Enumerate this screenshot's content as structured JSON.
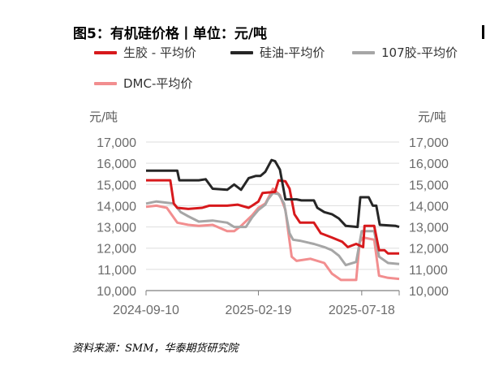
{
  "title": "图5：有机硅价格丨单位：元/吨",
  "source": "资料来源：SMM，华泰期货研究院",
  "chart_data": {
    "type": "line",
    "y_unit_left": "元/吨",
    "y_unit_right": "元/吨",
    "ylim": [
      10000,
      17000
    ],
    "y_ticks": [
      "17,000",
      "16,000",
      "15,000",
      "14,000",
      "13,000",
      "12,000",
      "11,000",
      "10,000"
    ],
    "y_tick_values": [
      17000,
      16000,
      15000,
      14000,
      13000,
      12000,
      11000,
      10000
    ],
    "x_range": [
      "2024-09-10",
      "2025-09-10"
    ],
    "x_ticks": [
      {
        "label": "2024-09-10",
        "date": "2024-09-10"
      },
      {
        "label": "2025-02-19",
        "date": "2025-02-19"
      },
      {
        "label": "2025-07-18",
        "date": "2025-07-18"
      }
    ],
    "grid": true,
    "legend": "top",
    "series": [
      {
        "name": "生胶 - 平均价",
        "color": "#d7191c",
        "points": [
          [
            "2024-09-10",
            15200
          ],
          [
            "2024-10-15",
            15200
          ],
          [
            "2024-10-20",
            14100
          ],
          [
            "2024-10-25",
            13900
          ],
          [
            "2024-11-10",
            13850
          ],
          [
            "2024-11-30",
            13900
          ],
          [
            "2024-12-10",
            14000
          ],
          [
            "2025-01-05",
            14000
          ],
          [
            "2025-01-20",
            14050
          ],
          [
            "2025-02-05",
            13900
          ],
          [
            "2025-02-10",
            14000
          ],
          [
            "2025-02-19",
            14200
          ],
          [
            "2025-02-25",
            14600
          ],
          [
            "2025-03-15",
            14650
          ],
          [
            "2025-03-20",
            15200
          ],
          [
            "2025-03-30",
            15150
          ],
          [
            "2025-04-05",
            14800
          ],
          [
            "2025-04-12",
            13600
          ],
          [
            "2025-04-20",
            13200
          ],
          [
            "2025-05-10",
            13200
          ],
          [
            "2025-05-20",
            12700
          ],
          [
            "2025-06-05",
            12500
          ],
          [
            "2025-06-20",
            12300
          ],
          [
            "2025-06-28",
            12050
          ],
          [
            "2025-07-10",
            12200
          ],
          [
            "2025-07-20",
            12050
          ],
          [
            "2025-07-22",
            13050
          ],
          [
            "2025-08-05",
            13050
          ],
          [
            "2025-08-12",
            11900
          ],
          [
            "2025-08-20",
            11900
          ],
          [
            "2025-08-25",
            11750
          ],
          [
            "2025-09-10",
            11750
          ]
        ]
      },
      {
        "name": "硅油-平均价",
        "color": "#262626",
        "points": [
          [
            "2024-09-10",
            15650
          ],
          [
            "2024-10-25",
            15650
          ],
          [
            "2024-10-28",
            15200
          ],
          [
            "2024-11-25",
            15200
          ],
          [
            "2024-12-05",
            15250
          ],
          [
            "2024-12-15",
            14800
          ],
          [
            "2025-01-05",
            14750
          ],
          [
            "2025-01-15",
            15000
          ],
          [
            "2025-01-25",
            14750
          ],
          [
            "2025-02-05",
            15300
          ],
          [
            "2025-02-15",
            15400
          ],
          [
            "2025-02-22",
            15400
          ],
          [
            "2025-03-01",
            15600
          ],
          [
            "2025-03-10",
            16150
          ],
          [
            "2025-03-15",
            16100
          ],
          [
            "2025-03-22",
            15700
          ],
          [
            "2025-03-30",
            14300
          ],
          [
            "2025-04-15",
            14300
          ],
          [
            "2025-04-22",
            14250
          ],
          [
            "2025-05-10",
            14250
          ],
          [
            "2025-05-15",
            13900
          ],
          [
            "2025-05-25",
            13700
          ],
          [
            "2025-06-05",
            13600
          ],
          [
            "2025-06-15",
            13400
          ],
          [
            "2025-06-25",
            13050
          ],
          [
            "2025-07-12",
            13000
          ],
          [
            "2025-07-16",
            14400
          ],
          [
            "2025-07-28",
            14400
          ],
          [
            "2025-08-03",
            14000
          ],
          [
            "2025-08-08",
            14000
          ],
          [
            "2025-08-13",
            13100
          ],
          [
            "2025-09-05",
            13050
          ],
          [
            "2025-09-10",
            13000
          ]
        ]
      },
      {
        "name": "107胶-平均价",
        "color": "#a6a6a6",
        "points": [
          [
            "2024-09-10",
            14100
          ],
          [
            "2024-09-25",
            14200
          ],
          [
            "2024-10-20",
            14100
          ],
          [
            "2024-10-30",
            13700
          ],
          [
            "2024-11-10",
            13500
          ],
          [
            "2024-11-25",
            13250
          ],
          [
            "2024-12-15",
            13300
          ],
          [
            "2025-01-05",
            13200
          ],
          [
            "2025-01-15",
            13000
          ],
          [
            "2025-02-01",
            13000
          ],
          [
            "2025-02-10",
            13450
          ],
          [
            "2025-02-19",
            13800
          ],
          [
            "2025-03-01",
            14050
          ],
          [
            "2025-03-05",
            14300
          ],
          [
            "2025-03-12",
            14600
          ],
          [
            "2025-03-20",
            14550
          ],
          [
            "2025-03-28",
            14100
          ],
          [
            "2025-04-05",
            12700
          ],
          [
            "2025-04-10",
            12400
          ],
          [
            "2025-04-20",
            12350
          ],
          [
            "2025-05-10",
            12200
          ],
          [
            "2025-05-25",
            12050
          ],
          [
            "2025-06-05",
            11900
          ],
          [
            "2025-06-15",
            11650
          ],
          [
            "2025-06-25",
            11200
          ],
          [
            "2025-07-10",
            11350
          ],
          [
            "2025-07-18",
            12800
          ],
          [
            "2025-08-05",
            12800
          ],
          [
            "2025-08-12",
            11600
          ],
          [
            "2025-08-25",
            11300
          ],
          [
            "2025-09-10",
            11250
          ]
        ]
      },
      {
        "name": "DMC-平均价",
        "color": "#f28e8f",
        "points": [
          [
            "2024-09-10",
            13950
          ],
          [
            "2024-09-25",
            14000
          ],
          [
            "2024-10-10",
            13900
          ],
          [
            "2024-10-25",
            13200
          ],
          [
            "2024-11-10",
            13100
          ],
          [
            "2024-11-25",
            13050
          ],
          [
            "2024-12-15",
            13100
          ],
          [
            "2025-01-05",
            12800
          ],
          [
            "2025-01-15",
            12800
          ],
          [
            "2025-01-25",
            13050
          ],
          [
            "2025-02-10",
            13550
          ],
          [
            "2025-02-19",
            13900
          ],
          [
            "2025-03-01",
            14100
          ],
          [
            "2025-03-05",
            14350
          ],
          [
            "2025-03-12",
            14800
          ],
          [
            "2025-03-22",
            14500
          ],
          [
            "2025-03-30",
            13800
          ],
          [
            "2025-04-03",
            12800
          ],
          [
            "2025-04-08",
            11600
          ],
          [
            "2025-04-15",
            11400
          ],
          [
            "2025-05-05",
            11500
          ],
          [
            "2025-05-25",
            11300
          ],
          [
            "2025-06-05",
            10800
          ],
          [
            "2025-06-18",
            10500
          ],
          [
            "2025-07-10",
            10500
          ],
          [
            "2025-07-15",
            12300
          ],
          [
            "2025-07-20",
            12500
          ],
          [
            "2025-08-05",
            12400
          ],
          [
            "2025-08-12",
            10700
          ],
          [
            "2025-08-25",
            10600
          ],
          [
            "2025-09-10",
            10550
          ]
        ]
      }
    ]
  }
}
